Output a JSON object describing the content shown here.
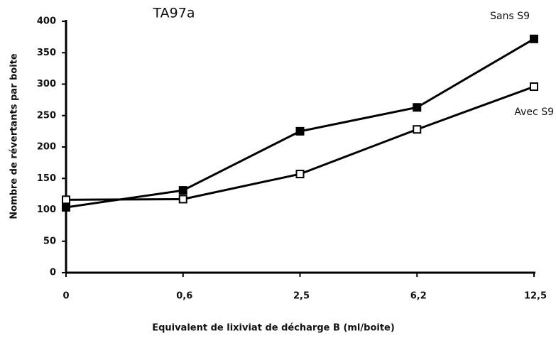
{
  "chart_data": {
    "type": "line",
    "title": "TA97a",
    "xlabel": "Equivalent de lixiviat de décharge B (ml/boite)",
    "ylabel": "Nombre de révertants par boite",
    "categories": [
      "0",
      "0,6",
      "2,5",
      "6,2",
      "12,5"
    ],
    "series": [
      {
        "name": "Sans S9",
        "color": "#000000",
        "marker_fill": "#000000",
        "values": [
          104,
          131,
          225,
          263,
          372
        ]
      },
      {
        "name": "Avec S9",
        "color": "#000000",
        "marker_fill": "#ffffff",
        "values": [
          116,
          117,
          157,
          228,
          296
        ]
      }
    ],
    "ylim": [
      0,
      400
    ],
    "yticks": [
      0,
      50,
      100,
      150,
      200,
      250,
      300,
      350,
      400
    ],
    "grid": false
  }
}
